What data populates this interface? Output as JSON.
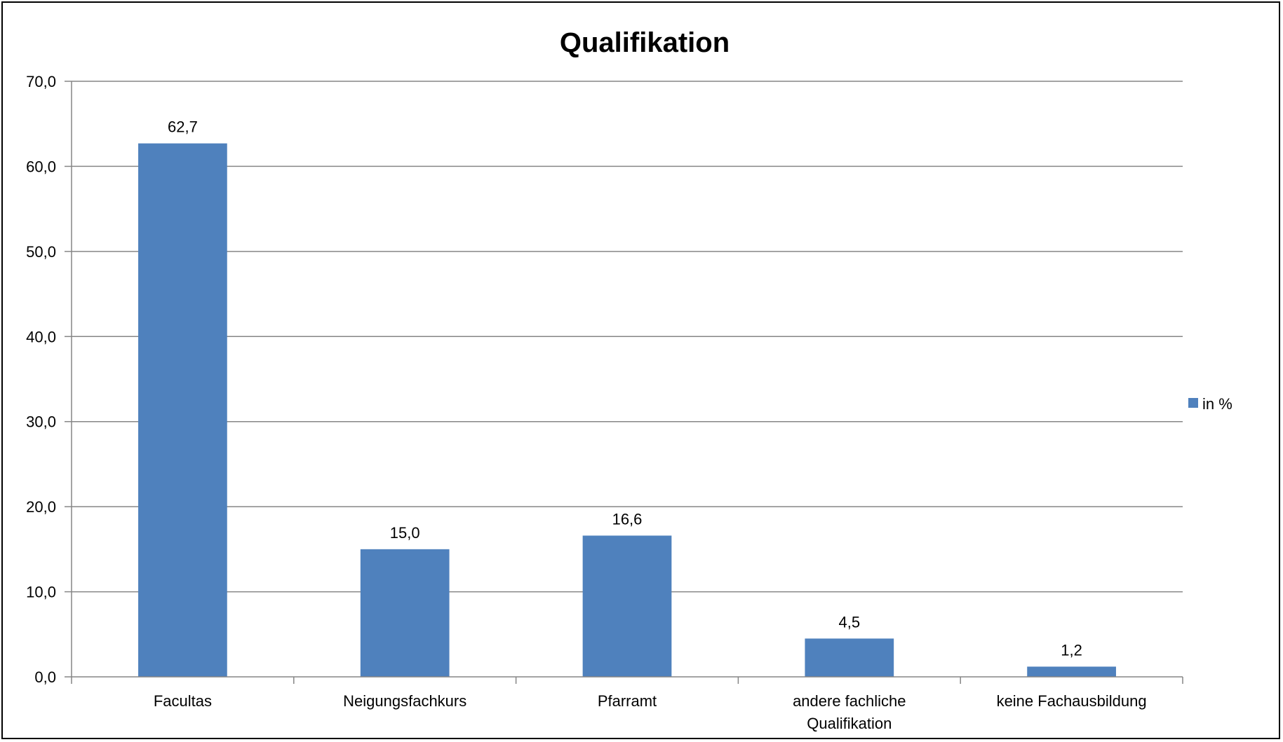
{
  "chart_data": {
    "type": "bar",
    "title": "Qualifikation",
    "xlabel": "",
    "ylabel": "",
    "categories": [
      [
        "Facultas"
      ],
      [
        "Neigungsfachkurs"
      ],
      [
        "Pfarramt"
      ],
      [
        "andere fachliche",
        "Qualifikation"
      ],
      [
        "keine Fachausbildung"
      ]
    ],
    "series": [
      {
        "name": "in %",
        "values": [
          62.7,
          15.0,
          16.6,
          4.5,
          1.2
        ],
        "value_labels": [
          "62,7",
          "15,0",
          "16,6",
          "4,5",
          "1,2"
        ],
        "color": "#4F81BD"
      }
    ],
    "ylim": [
      0,
      70
    ],
    "yticks": [
      0,
      10,
      20,
      30,
      40,
      50,
      60,
      70
    ],
    "ytick_labels": [
      "0,0",
      "10,0",
      "20,0",
      "30,0",
      "40,0",
      "50,0",
      "60,0",
      "70,0"
    ],
    "grid": true,
    "gridline_color": "#868686",
    "legend": "right"
  }
}
